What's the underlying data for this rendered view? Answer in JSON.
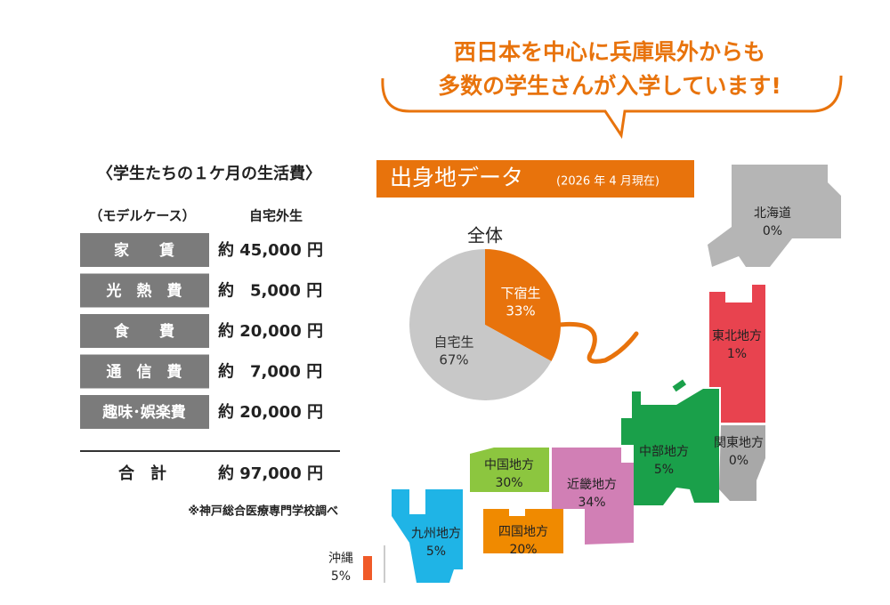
{
  "headline": {
    "lines": [
      "西日本を中心に兵庫県外からも",
      "多数の学生さんが入学しています!"
    ]
  },
  "living_costs": {
    "title": "〈学生たちの１ケ月の生活費〉",
    "subtitle": "（モデルケース）",
    "column": "自宅外生",
    "rows": [
      [
        "家　　賃",
        "約 45,000 円"
      ],
      [
        "光　熱　費",
        "約　5,000 円"
      ],
      [
        "食　　費",
        "約 20,000 円"
      ],
      [
        "通　信　費",
        "約　7,000 円"
      ],
      [
        "趣味･娯楽費",
        "約 20,000 円"
      ]
    ],
    "total": [
      "合　計",
      "約 97,000 円"
    ],
    "note": "※神戸総合医療専門学校調べ"
  },
  "origin": {
    "title": "出身地データ",
    "date": "(2026 年 4 月現在)",
    "pie": {
      "title": "全体",
      "slices": [
        {
          "name": "下宿生",
          "value": 33,
          "label": "33%",
          "color": "#e8730c"
        },
        {
          "name": "自宅生",
          "value": 67,
          "label": "67%",
          "color": "#c8c8c8"
        }
      ]
    },
    "regions": [
      {
        "name": "北海道",
        "value": "0%"
      },
      {
        "name": "東北地方",
        "value": "1%"
      },
      {
        "name": "関東地方",
        "value": "0%"
      },
      {
        "name": "中部地方",
        "value": "5%"
      },
      {
        "name": "近畿地方",
        "value": "34%"
      },
      {
        "name": "中国地方",
        "value": "30%"
      },
      {
        "name": "四国地方",
        "value": "20%"
      },
      {
        "name": "九州地方",
        "value": "5%"
      },
      {
        "name": "沖縄",
        "value": "5%"
      }
    ]
  }
}
